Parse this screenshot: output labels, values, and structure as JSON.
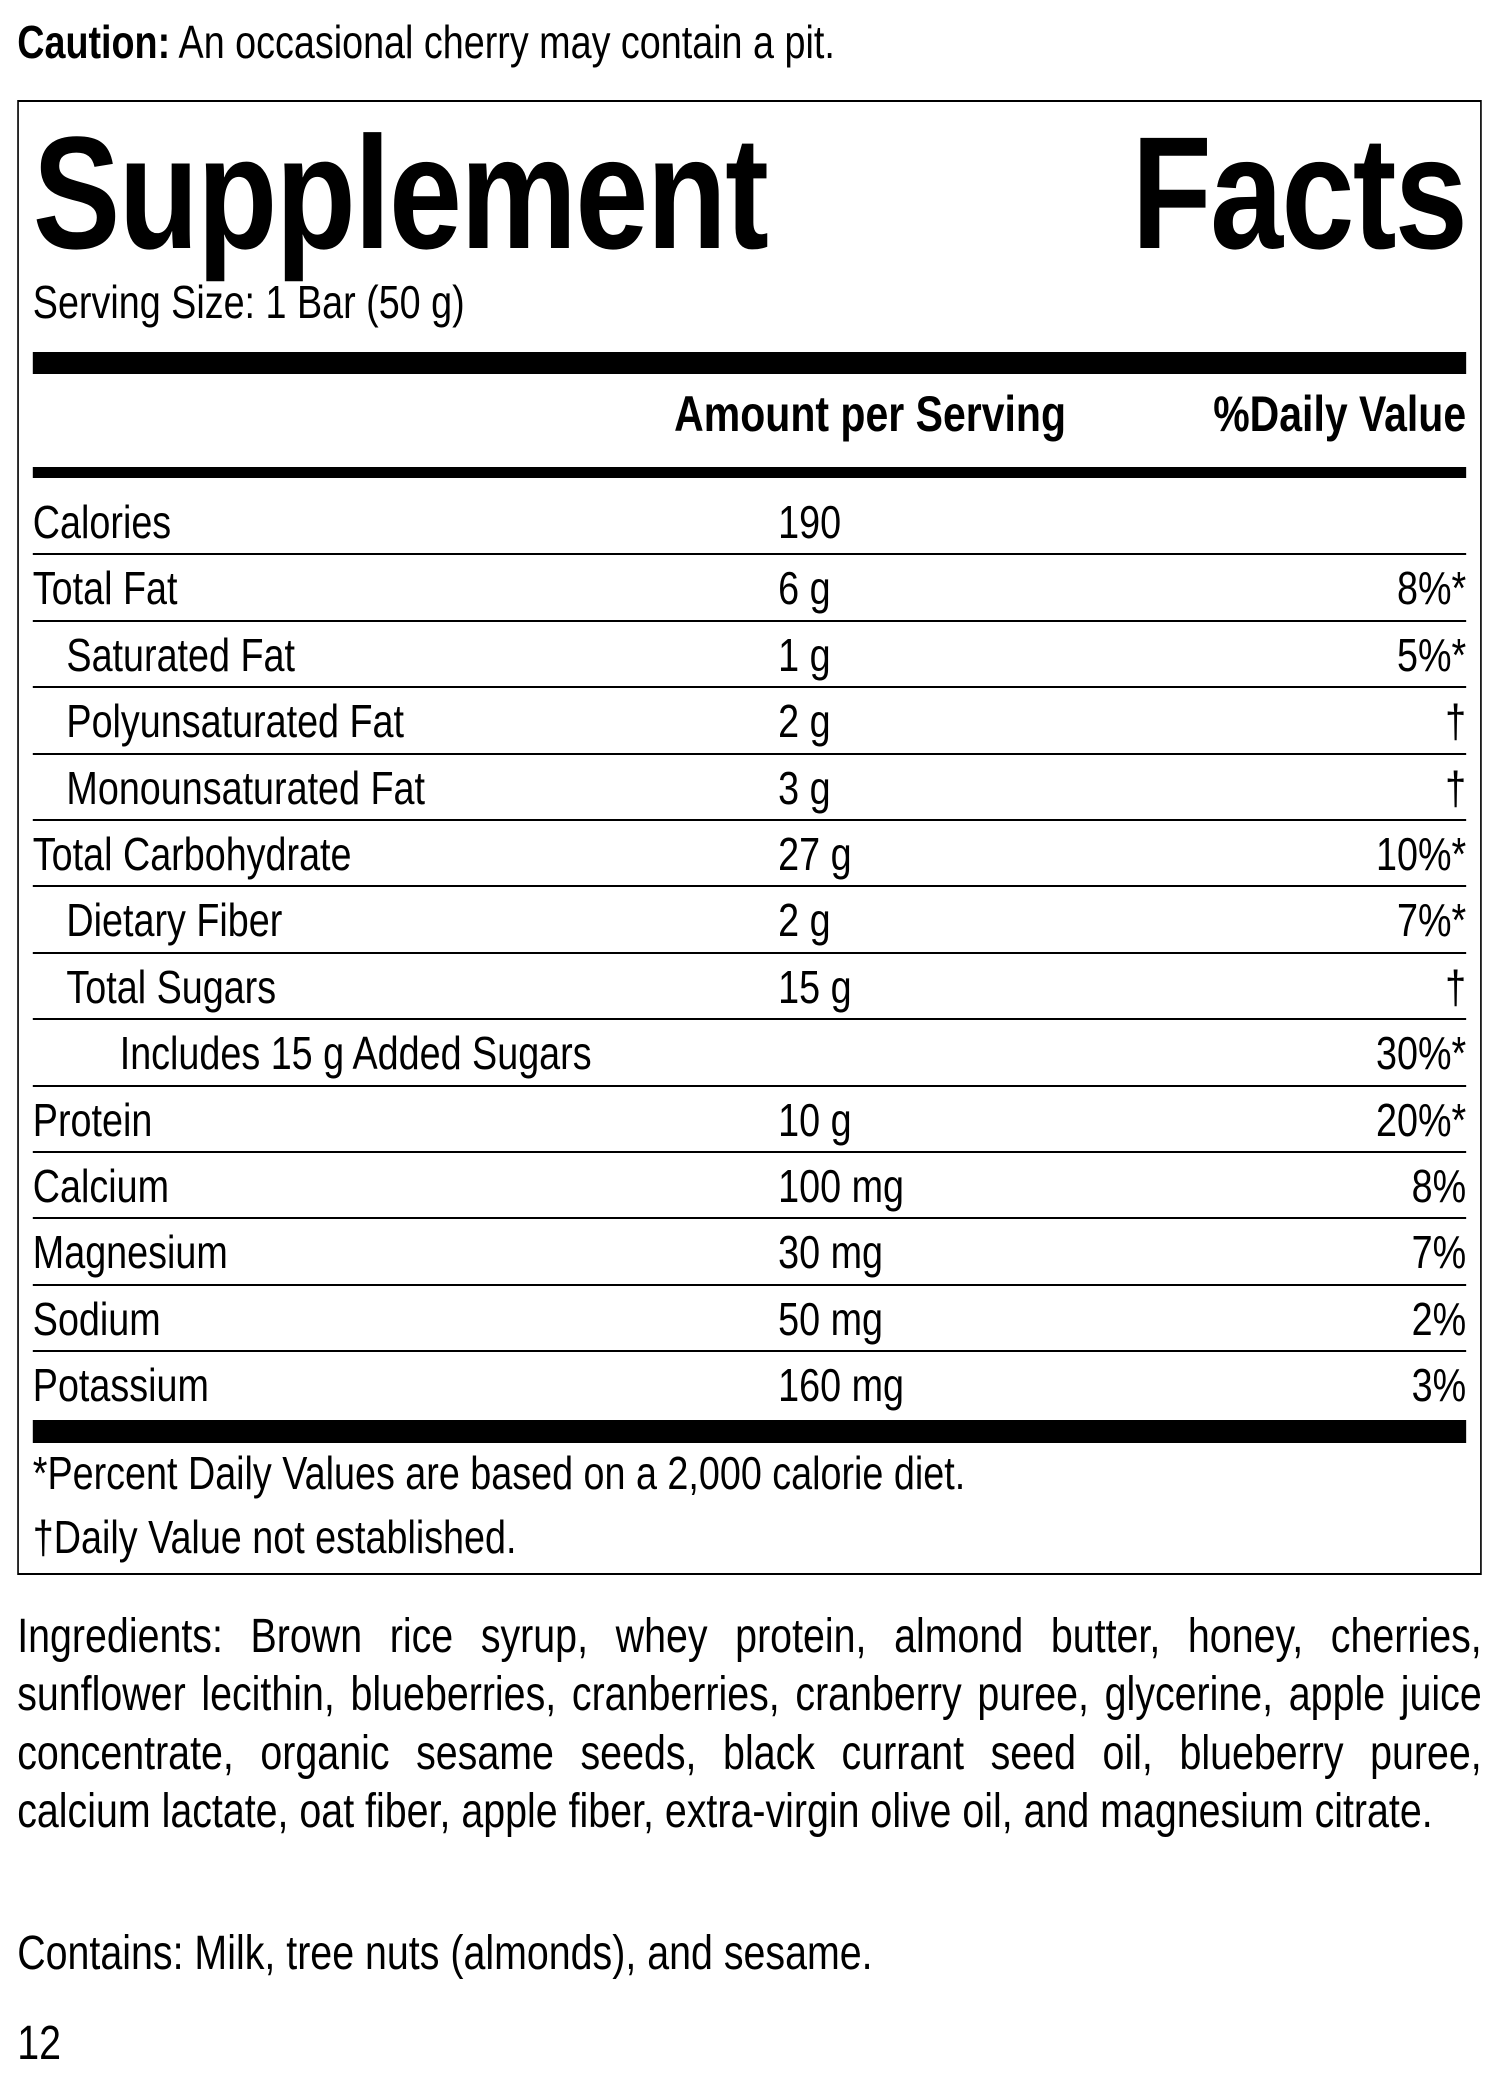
{
  "caution": {
    "label": "Caution:",
    "text": " An occasional cherry may contain a pit."
  },
  "facts": {
    "title_word1": "Supplement",
    "title_word2": "Facts",
    "serving_size": "Serving Size: 1 Bar (50 g)",
    "header_amount": "Amount per Serving",
    "header_dv": "%Daily Value",
    "rows": [
      {
        "label": "Calories",
        "amount": "190",
        "dv": "",
        "indent": 0
      },
      {
        "label": "Total Fat",
        "amount": "6 g",
        "dv": "8%*",
        "indent": 0
      },
      {
        "label": "Saturated Fat",
        "amount": "1 g",
        "dv": "5%*",
        "indent": 1
      },
      {
        "label": "Polyunsaturated Fat",
        "amount": "2 g",
        "dv": "†",
        "indent": 1
      },
      {
        "label": "Monounsaturated Fat",
        "amount": "3 g",
        "dv": "†",
        "indent": 1
      },
      {
        "label": "Total Carbohydrate",
        "amount": "27 g",
        "dv": "10%*",
        "indent": 0
      },
      {
        "label": "Dietary Fiber",
        "amount": "2 g",
        "dv": "7%*",
        "indent": 1
      },
      {
        "label": "Total Sugars",
        "amount": "15 g",
        "dv": "†",
        "indent": 1
      },
      {
        "label": "Includes 15 g Added Sugars",
        "amount": "",
        "dv": "30%*",
        "indent": 2
      },
      {
        "label": "Protein",
        "amount": "10 g",
        "dv": "20%*",
        "indent": 0
      },
      {
        "label": "Calcium",
        "amount": "100 mg",
        "dv": "8%",
        "indent": 0
      },
      {
        "label": "Magnesium",
        "amount": "30 mg",
        "dv": "7%",
        "indent": 0
      },
      {
        "label": "Sodium",
        "amount": "50 mg",
        "dv": "2%",
        "indent": 0
      },
      {
        "label": "Potassium",
        "amount": "160 mg",
        "dv": "3%",
        "indent": 0
      }
    ],
    "footnote_percent": "*Percent Daily Values are based on a 2,000 calorie diet.",
    "footnote_dagger": "†Daily Value not established."
  },
  "ingredients": "Ingredients: Brown rice syrup, whey protein, almond butter, honey, cherries, sunflower lecithin, blueberries, cranberries, cranberry puree, glycerine, apple juice concentrate, organic sesame seeds, black currant seed oil, blueberry puree, calcium lactate, oat fiber, apple fiber, extra-virgin olive oil, and magnesium citrate.",
  "contains": "Contains: Milk, tree nuts (almonds), and sesame.",
  "page_number": "12"
}
